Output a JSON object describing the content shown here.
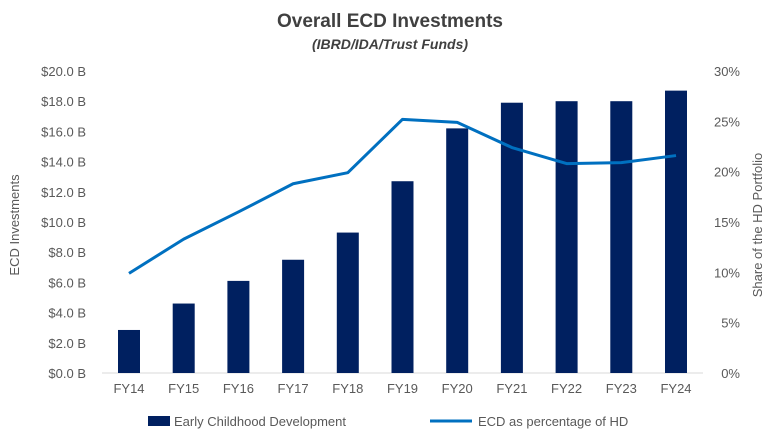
{
  "chart_data": {
    "type": "bar+line",
    "title": "Overall ECD Investments",
    "subtitle": "(IBRD/IDA/Trust Funds)",
    "ylabel": "ECD Investments",
    "y2label": "Share of the HD Portfolio",
    "categories": [
      "FY14",
      "FY15",
      "FY16",
      "FY17",
      "FY18",
      "FY19",
      "FY20",
      "FY21",
      "FY22",
      "FY23",
      "FY24"
    ],
    "ylim": [
      0,
      20
    ],
    "y2lim": [
      0,
      30
    ],
    "yticks": [
      "$0.0 B",
      "$2.0 B",
      "$4.0 B",
      "$6.0 B",
      "$8.0 B",
      "$10.0 B",
      "$12.0 B",
      "$14.0 B",
      "$16.0 B",
      "$18.0 B",
      "$20.0 B"
    ],
    "y2ticks": [
      "0%",
      "5%",
      "10%",
      "15%",
      "20%",
      "25%",
      "30%"
    ],
    "grid": false,
    "legend": "bottom",
    "series": [
      {
        "name": "Early Childhood Development",
        "type": "bar",
        "axis": "left",
        "color": "#002060",
        "values": [
          2.85,
          4.6,
          6.1,
          7.5,
          9.3,
          12.7,
          16.2,
          17.9,
          18.0,
          18.0,
          18.7
        ]
      },
      {
        "name": "ECD as percentage of HD",
        "type": "line",
        "axis": "right",
        "color": "#0070C0",
        "values": [
          9.9,
          13.3,
          16.0,
          18.8,
          19.9,
          25.2,
          24.9,
          22.4,
          20.8,
          20.9,
          21.6
        ]
      }
    ]
  }
}
